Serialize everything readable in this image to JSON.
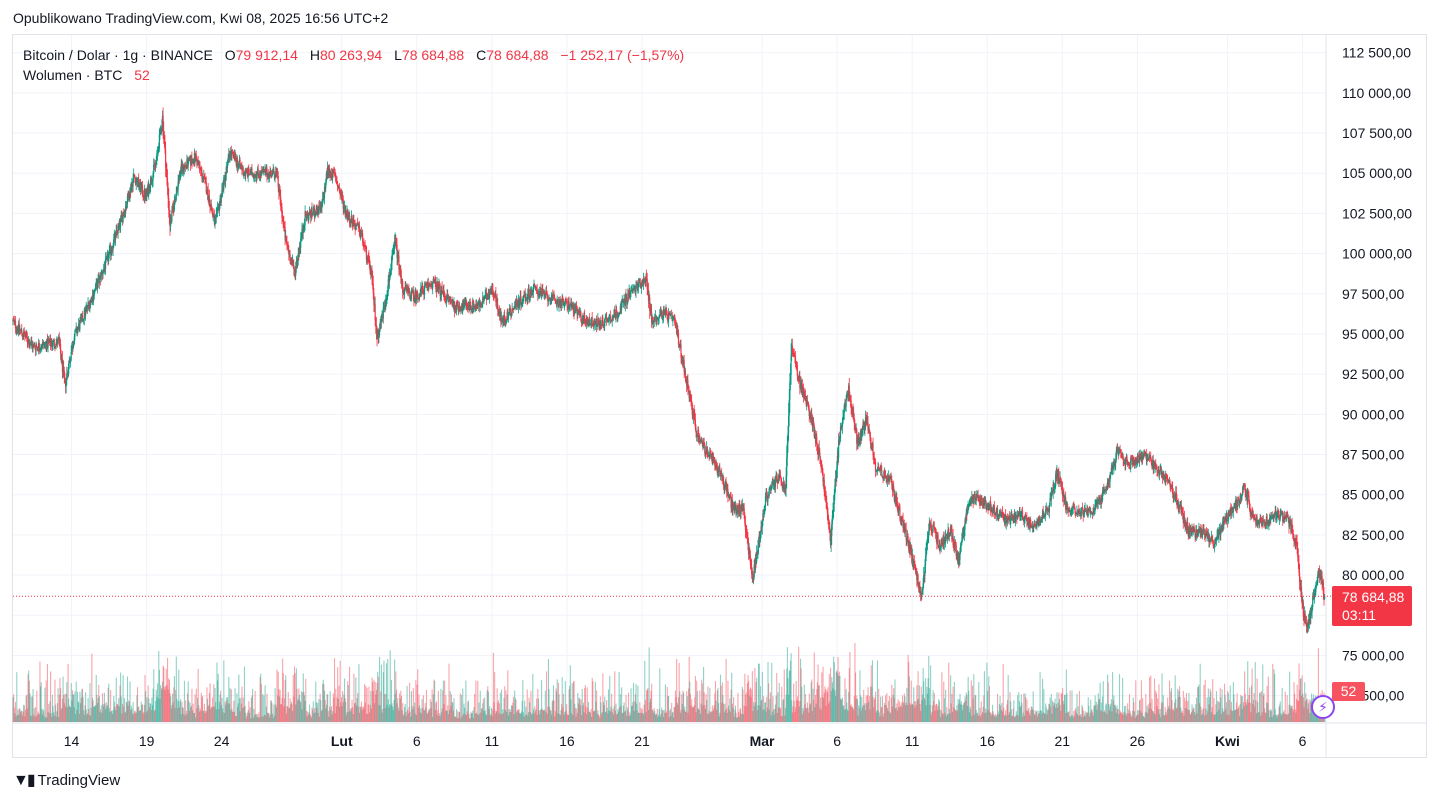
{
  "header": {
    "published": "Opublikowano TradingView.com, Kwi 08, 2025 16:56 UTC+2"
  },
  "legend": {
    "symbol": "Bitcoin / Dolar · 1g · BINANCE",
    "o_label": "O",
    "o_value": "79 912,14",
    "h_label": "H",
    "h_value": "80 263,94",
    "l_label": "L",
    "l_value": "78 684,88",
    "c_label": "C",
    "c_value": "78 684,88",
    "change": "−1 252,17 (−1,57%)",
    "volume_label": "Wolumen · BTC",
    "volume_value": "52"
  },
  "price_tag": {
    "price": "78 684,88",
    "countdown": "03:11"
  },
  "volume_tag": "52",
  "footer": {
    "brand": "TradingView"
  },
  "colors": {
    "up": "#089981",
    "down": "#f23645",
    "grid": "#f0f3fa",
    "text": "#131722"
  },
  "chart_data": {
    "type": "candlestick",
    "symbol": "Bitcoin / Dolar",
    "interval": "1g",
    "exchange": "BINANCE",
    "y_ticks": [
      72500,
      75000,
      77500,
      80000,
      82500,
      85000,
      87500,
      90000,
      92500,
      95000,
      97500,
      100000,
      102500,
      105000,
      107500,
      110000,
      112500
    ],
    "y_tick_labels": [
      "72 500,00",
      "75 000,00",
      "",
      "80 000,00",
      "82 500,00",
      "85 000,00",
      "87 500,00",
      "90 000,00",
      "92 500,00",
      "95 000,00",
      "97 500,00",
      "100 000,00",
      "102 500,00",
      "105 000,00",
      "107 500,00",
      "110 000,00",
      "112 500,00"
    ],
    "ylim": [
      70800,
      113600
    ],
    "x_ticks": [
      {
        "label": "14",
        "day": 14,
        "bold": false
      },
      {
        "label": "19",
        "day": 19,
        "bold": false
      },
      {
        "label": "24",
        "day": 24,
        "bold": false
      },
      {
        "label": "Lut",
        "day": 32,
        "bold": true
      },
      {
        "label": "6",
        "day": 37,
        "bold": false
      },
      {
        "label": "11",
        "day": 42,
        "bold": false
      },
      {
        "label": "16",
        "day": 47,
        "bold": false
      },
      {
        "label": "21",
        "day": 52,
        "bold": false
      },
      {
        "label": "Mar",
        "day": 60,
        "bold": true
      },
      {
        "label": "6",
        "day": 65,
        "bold": false
      },
      {
        "label": "11",
        "day": 70,
        "bold": false
      },
      {
        "label": "16",
        "day": 75,
        "bold": false
      },
      {
        "label": "21",
        "day": 80,
        "bold": false
      },
      {
        "label": "26",
        "day": 85,
        "bold": false
      },
      {
        "label": "Kwi",
        "day": 91,
        "bold": true
      },
      {
        "label": "6",
        "day": 96,
        "bold": false
      }
    ],
    "xlim_days": [
      10.1,
      97.5
    ],
    "last_price": 78684.88,
    "price_path": [
      [
        10.1,
        95800
      ],
      [
        11.5,
        94200
      ],
      [
        13.2,
        94500
      ],
      [
        13.6,
        91800
      ],
      [
        14.2,
        94800
      ],
      [
        15.5,
        97500
      ],
      [
        16.5,
        99800
      ],
      [
        17.5,
        102500
      ],
      [
        18.2,
        104800
      ],
      [
        19.0,
        103500
      ],
      [
        19.7,
        105800
      ],
      [
        20.1,
        108500
      ],
      [
        20.6,
        101800
      ],
      [
        21.3,
        105200
      ],
      [
        22.3,
        106000
      ],
      [
        23.0,
        104200
      ],
      [
        23.6,
        101800
      ],
      [
        24.6,
        106300
      ],
      [
        25.6,
        105000
      ],
      [
        27.7,
        105000
      ],
      [
        28.3,
        100800
      ],
      [
        28.9,
        98800
      ],
      [
        29.6,
        102300
      ],
      [
        30.7,
        102800
      ],
      [
        31.1,
        105200
      ],
      [
        31.6,
        104800
      ],
      [
        32.3,
        102600
      ],
      [
        33.3,
        101300
      ],
      [
        34.0,
        98800
      ],
      [
        34.4,
        94800
      ],
      [
        34.9,
        96800
      ],
      [
        35.6,
        100800
      ],
      [
        36.1,
        97800
      ],
      [
        36.9,
        97300
      ],
      [
        38.1,
        98200
      ],
      [
        39.6,
        96700
      ],
      [
        41.3,
        96800
      ],
      [
        42.1,
        97900
      ],
      [
        42.7,
        95700
      ],
      [
        43.7,
        96900
      ],
      [
        44.9,
        97800
      ],
      [
        46.1,
        97100
      ],
      [
        47.3,
        96800
      ],
      [
        48.1,
        95900
      ],
      [
        49.2,
        95600
      ],
      [
        50.4,
        96300
      ],
      [
        51.1,
        97400
      ],
      [
        52.3,
        98500
      ],
      [
        52.7,
        95800
      ],
      [
        53.4,
        96300
      ],
      [
        54.2,
        95800
      ],
      [
        55.0,
        92200
      ],
      [
        55.7,
        88800
      ],
      [
        56.4,
        87600
      ],
      [
        57.3,
        86300
      ],
      [
        58.1,
        84200
      ],
      [
        58.8,
        84100
      ],
      [
        59.4,
        79700
      ],
      [
        60.3,
        84800
      ],
      [
        61.1,
        86100
      ],
      [
        61.6,
        85300
      ],
      [
        62.0,
        94200
      ],
      [
        62.6,
        91800
      ],
      [
        63.3,
        89900
      ],
      [
        64.0,
        86800
      ],
      [
        64.6,
        82200
      ],
      [
        65.2,
        88700
      ],
      [
        65.8,
        91600
      ],
      [
        66.4,
        88200
      ],
      [
        67.0,
        89800
      ],
      [
        67.6,
        86800
      ],
      [
        68.6,
        85800
      ],
      [
        69.6,
        82600
      ],
      [
        70.2,
        80400
      ],
      [
        70.7,
        78700
      ],
      [
        71.2,
        83300
      ],
      [
        71.9,
        81800
      ],
      [
        72.6,
        82900
      ],
      [
        73.1,
        80800
      ],
      [
        73.8,
        84600
      ],
      [
        74.5,
        84800
      ],
      [
        75.5,
        84000
      ],
      [
        76.4,
        83400
      ],
      [
        77.4,
        83700
      ],
      [
        78.1,
        83100
      ],
      [
        79.1,
        84100
      ],
      [
        79.7,
        86400
      ],
      [
        80.3,
        84300
      ],
      [
        81.1,
        84000
      ],
      [
        82.1,
        83900
      ],
      [
        82.9,
        85300
      ],
      [
        83.7,
        87600
      ],
      [
        84.5,
        86900
      ],
      [
        85.5,
        87500
      ],
      [
        86.3,
        86600
      ],
      [
        87.0,
        86000
      ],
      [
        87.7,
        84600
      ],
      [
        88.5,
        82600
      ],
      [
        89.5,
        82700
      ],
      [
        90.2,
        81900
      ],
      [
        90.9,
        83400
      ],
      [
        91.6,
        84400
      ],
      [
        92.2,
        85500
      ],
      [
        92.7,
        83600
      ],
      [
        93.4,
        83200
      ],
      [
        94.3,
        83800
      ],
      [
        95.1,
        83400
      ],
      [
        95.6,
        82100
      ],
      [
        96.0,
        78300
      ],
      [
        96.3,
        76600
      ],
      [
        96.6,
        77800
      ],
      [
        96.9,
        79300
      ],
      [
        97.2,
        80200
      ],
      [
        97.5,
        78700
      ]
    ],
    "notes_rendering": "candles interpolated from price_path; volume histogram at bottom"
  }
}
